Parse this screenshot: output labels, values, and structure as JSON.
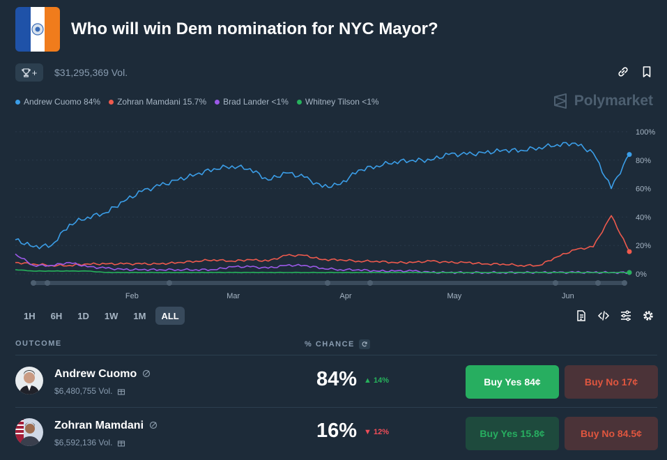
{
  "market": {
    "title": "Who will win Dem nomination for NYC Mayor?",
    "volume": "$31,295,369 Vol.",
    "trophy_label": "+"
  },
  "brand": {
    "name": "Polymarket"
  },
  "legend": [
    {
      "label": "Andrew Cuomo 84%",
      "color": "#3b9ee8"
    },
    {
      "label": "Zohran Mamdani 15.7%",
      "color": "#ef5a4d"
    },
    {
      "label": "Brad Lander <1%",
      "color": "#9b59e8"
    },
    {
      "label": "Whitney Tilson <1%",
      "color": "#27b25c"
    }
  ],
  "ranges": [
    "1H",
    "6H",
    "1D",
    "1W",
    "1M",
    "ALL"
  ],
  "active_range": "ALL",
  "table": {
    "outcome_header": "OUTCOME",
    "chance_header": "% CHANCE"
  },
  "outcomes": [
    {
      "name": "Andrew Cuomo",
      "volume": "$6,480,755 Vol.",
      "chance": "84%",
      "delta": "14%",
      "delta_dir": "up",
      "buy_yes": "Buy Yes 84¢",
      "buy_no": "Buy No 17¢"
    },
    {
      "name": "Zohran Mamdani",
      "volume": "$6,592,136 Vol.",
      "chance": "16%",
      "delta": "12%",
      "delta_dir": "down",
      "buy_yes": "Buy Yes 15.8¢",
      "buy_no": "Buy No 84.5¢"
    }
  ],
  "chart_data": {
    "type": "line",
    "x_tick_labels": [
      "Feb",
      "Mar",
      "Apr",
      "May",
      "Jun"
    ],
    "y_tick_labels": [
      "100%",
      "80%",
      "60%",
      "40%",
      "20%",
      "0%"
    ],
    "ylim": [
      0,
      100
    ],
    "x": [
      0,
      5,
      10,
      15,
      20,
      25,
      30,
      35,
      40,
      45,
      50,
      55,
      60,
      65,
      70,
      75,
      80,
      85,
      90,
      95,
      100,
      105,
      110,
      115,
      120,
      125,
      130,
      135,
      140,
      145,
      150,
      155,
      160,
      165,
      170
    ],
    "series": [
      {
        "name": "Andrew Cuomo",
        "color": "#3b9ee8",
        "values": [
          24,
          19,
          20,
          35,
          40,
          43,
          51,
          58,
          62,
          66,
          70,
          74,
          76,
          74,
          66,
          71,
          68,
          61,
          63,
          73,
          76,
          79,
          80,
          80,
          84,
          84,
          85,
          87,
          87,
          89,
          91,
          92,
          85,
          60,
          84
        ]
      },
      {
        "name": "Zohran Mamdani",
        "color": "#ef5a4d",
        "values": [
          8,
          7,
          6,
          6,
          7,
          7,
          7,
          7,
          7,
          8,
          9,
          10,
          9,
          10,
          9,
          13,
          13,
          10,
          10,
          9,
          9,
          8,
          8,
          9,
          8,
          8,
          7,
          7,
          6,
          6,
          12,
          17,
          19,
          41,
          15.7
        ]
      },
      {
        "name": "Brad Lander",
        "color": "#9b59e8",
        "values": [
          14,
          6,
          6,
          8,
          5,
          4,
          3,
          3,
          3,
          3,
          3,
          3,
          5,
          5,
          4,
          6,
          6,
          4,
          3,
          3,
          2,
          2,
          2,
          1,
          1,
          1,
          1,
          1,
          1,
          1,
          1,
          1,
          1,
          1,
          1
        ]
      },
      {
        "name": "Whitney Tilson",
        "color": "#27b25c",
        "values": [
          3,
          2,
          2,
          2,
          2,
          1,
          1,
          1,
          1,
          1,
          1,
          1,
          1,
          1,
          1,
          1,
          1,
          1,
          1,
          1,
          1,
          1,
          1,
          1,
          1,
          1,
          1,
          1,
          1,
          1,
          1,
          1,
          1,
          1,
          1
        ]
      }
    ]
  }
}
